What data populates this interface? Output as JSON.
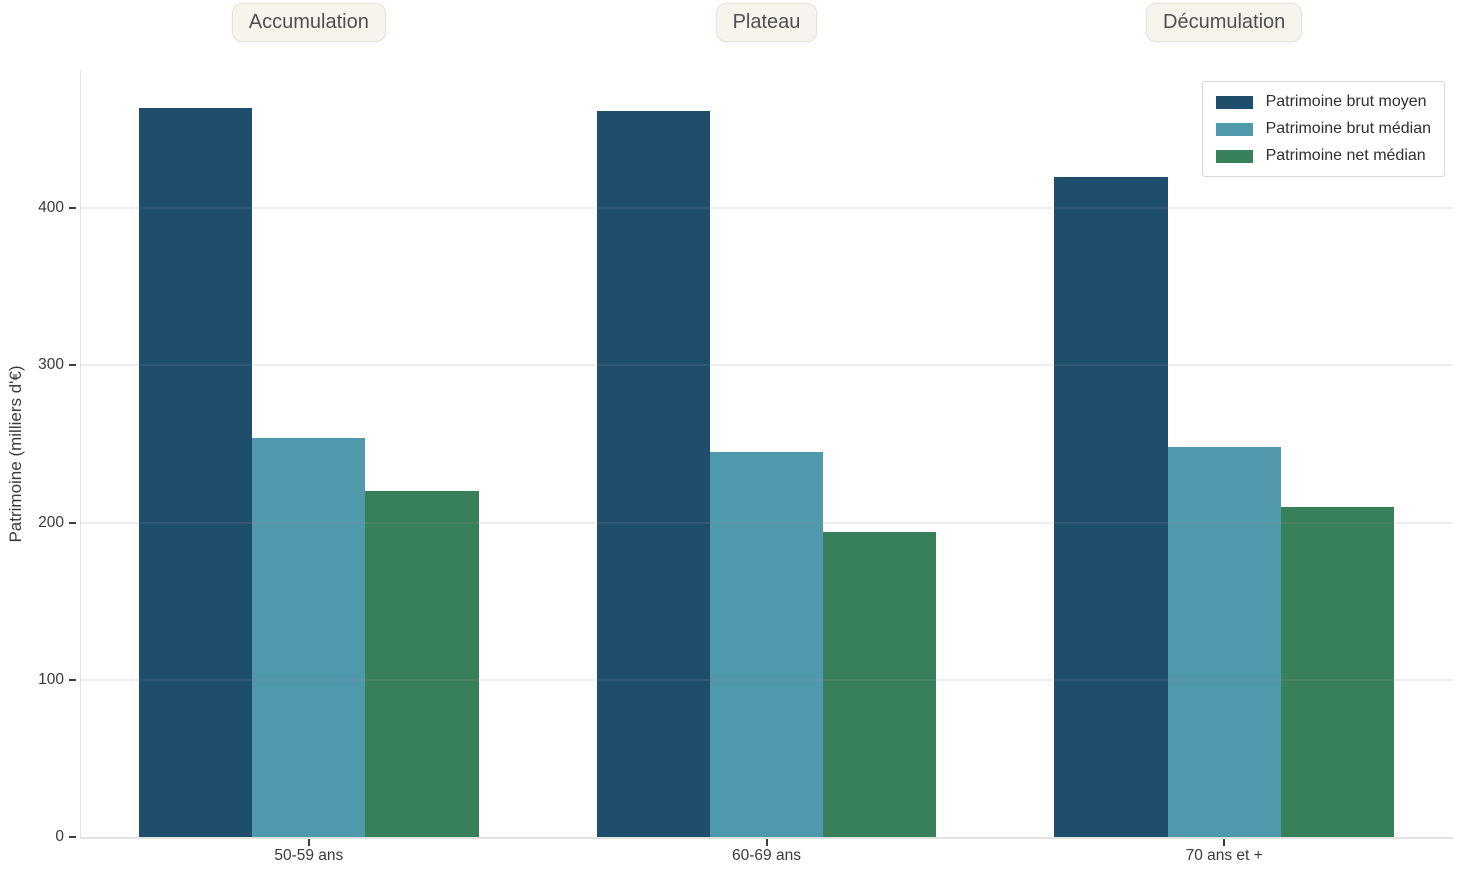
{
  "phases": [
    "Accumulation",
    "Plateau",
    "Décumulation"
  ],
  "chart_data": {
    "type": "bar",
    "categories": [
      "50-59 ans",
      "60-69 ans",
      "70 ans et +"
    ],
    "series": [
      {
        "name": "Patrimoine brut moyen",
        "color": "#1f4e6d",
        "values": [
          464,
          462,
          420
        ]
      },
      {
        "name": "Patrimoine brut médian",
        "color": "#5099ad",
        "values": [
          254,
          245,
          248
        ]
      },
      {
        "name": "Patrimoine net médian",
        "color": "#37805a",
        "values": [
          220,
          194,
          210
        ]
      }
    ],
    "title": "",
    "xlabel": "",
    "ylabel": "Patrimoine (milliers d'€)",
    "yticks": [
      0,
      100,
      200,
      300,
      400
    ],
    "ylim": [
      0,
      488
    ],
    "grid": true,
    "legend_position": "top-right",
    "group_annotations": [
      "Accumulation",
      "Plateau",
      "Décumulation"
    ]
  }
}
